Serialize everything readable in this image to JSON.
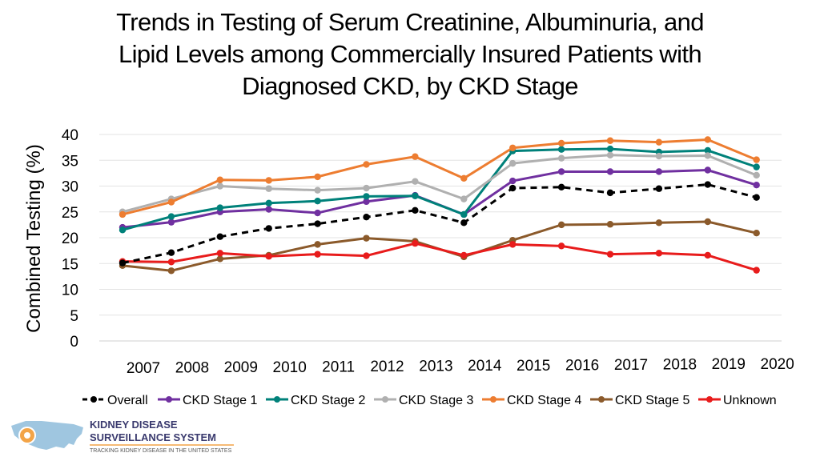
{
  "title": {
    "line1": "Trends in Testing of Serum Creatinine, Albuminuria, and",
    "line2": "Lipid Levels among Commercially Insured Patients with",
    "line3": "Diagnosed CKD, by CKD Stage"
  },
  "logo": {
    "line1": "KIDNEY DISEASE",
    "line2": "SURVEILLANCE SYSTEM",
    "line3": "TRACKING KIDNEY DISEASE IN THE UNITED STATES"
  },
  "chart_data": {
    "type": "line",
    "title": "Trends in Testing of Serum Creatinine, Albuminuria, and Lipid Levels among Commercially Insured Patients with Diagnosed CKD, by CKD Stage",
    "xlabel": "",
    "ylabel": "Combined Testing (%)",
    "x_tick_labels": [
      "2007",
      "2008",
      "2009",
      "2010",
      "2011",
      "2012",
      "2013",
      "2014",
      "2015",
      "2016",
      "2017",
      "2018",
      "2019",
      "2020"
    ],
    "ylim": [
      0,
      40
    ],
    "y_ticks": [
      0,
      5,
      10,
      15,
      20,
      25,
      30,
      35,
      40
    ],
    "grid": true,
    "legend_position": "bottom",
    "series": [
      {
        "name": "Overall",
        "color": "#000000",
        "dashed": true,
        "values": [
          15.1,
          17.1,
          20.2,
          21.8,
          22.7,
          24.0,
          25.3,
          22.9,
          29.6,
          29.8,
          28.7,
          29.5,
          30.3,
          27.8
        ]
      },
      {
        "name": "CKD Stage 1",
        "color": "#7030a0",
        "dashed": false,
        "values": [
          22.0,
          23.0,
          25.0,
          25.5,
          24.8,
          27.0,
          28.2,
          24.5,
          31.0,
          32.8,
          32.8,
          32.8,
          33.1,
          30.2
        ]
      },
      {
        "name": "CKD Stage 2",
        "color": "#00817a",
        "dashed": false,
        "values": [
          21.5,
          24.1,
          25.8,
          26.7,
          27.1,
          28.0,
          28.1,
          24.5,
          36.8,
          37.1,
          37.2,
          36.6,
          36.9,
          33.7
        ]
      },
      {
        "name": "CKD Stage 3",
        "color": "#b0b0b0",
        "dashed": false,
        "values": [
          25.0,
          27.5,
          30.0,
          29.5,
          29.2,
          29.6,
          30.9,
          27.5,
          34.4,
          35.4,
          36.0,
          35.8,
          35.9,
          32.1
        ]
      },
      {
        "name": "CKD Stage 4",
        "color": "#ed7d31",
        "dashed": false,
        "values": [
          24.5,
          26.9,
          31.2,
          31.1,
          31.8,
          34.2,
          35.7,
          31.5,
          37.4,
          38.3,
          38.8,
          38.5,
          39.0,
          35.1
        ]
      },
      {
        "name": "CKD Stage 5",
        "color": "#8b5a2b",
        "dashed": false,
        "values": [
          14.6,
          13.6,
          15.9,
          16.6,
          18.7,
          19.9,
          19.3,
          16.3,
          19.5,
          22.5,
          22.6,
          22.9,
          23.1,
          20.9
        ]
      },
      {
        "name": "Unknown",
        "color": "#e81c1c",
        "dashed": false,
        "values": [
          15.4,
          15.3,
          17.0,
          16.4,
          16.8,
          16.5,
          18.9,
          16.6,
          18.7,
          18.4,
          16.8,
          17.0,
          16.6,
          13.7
        ]
      }
    ]
  }
}
